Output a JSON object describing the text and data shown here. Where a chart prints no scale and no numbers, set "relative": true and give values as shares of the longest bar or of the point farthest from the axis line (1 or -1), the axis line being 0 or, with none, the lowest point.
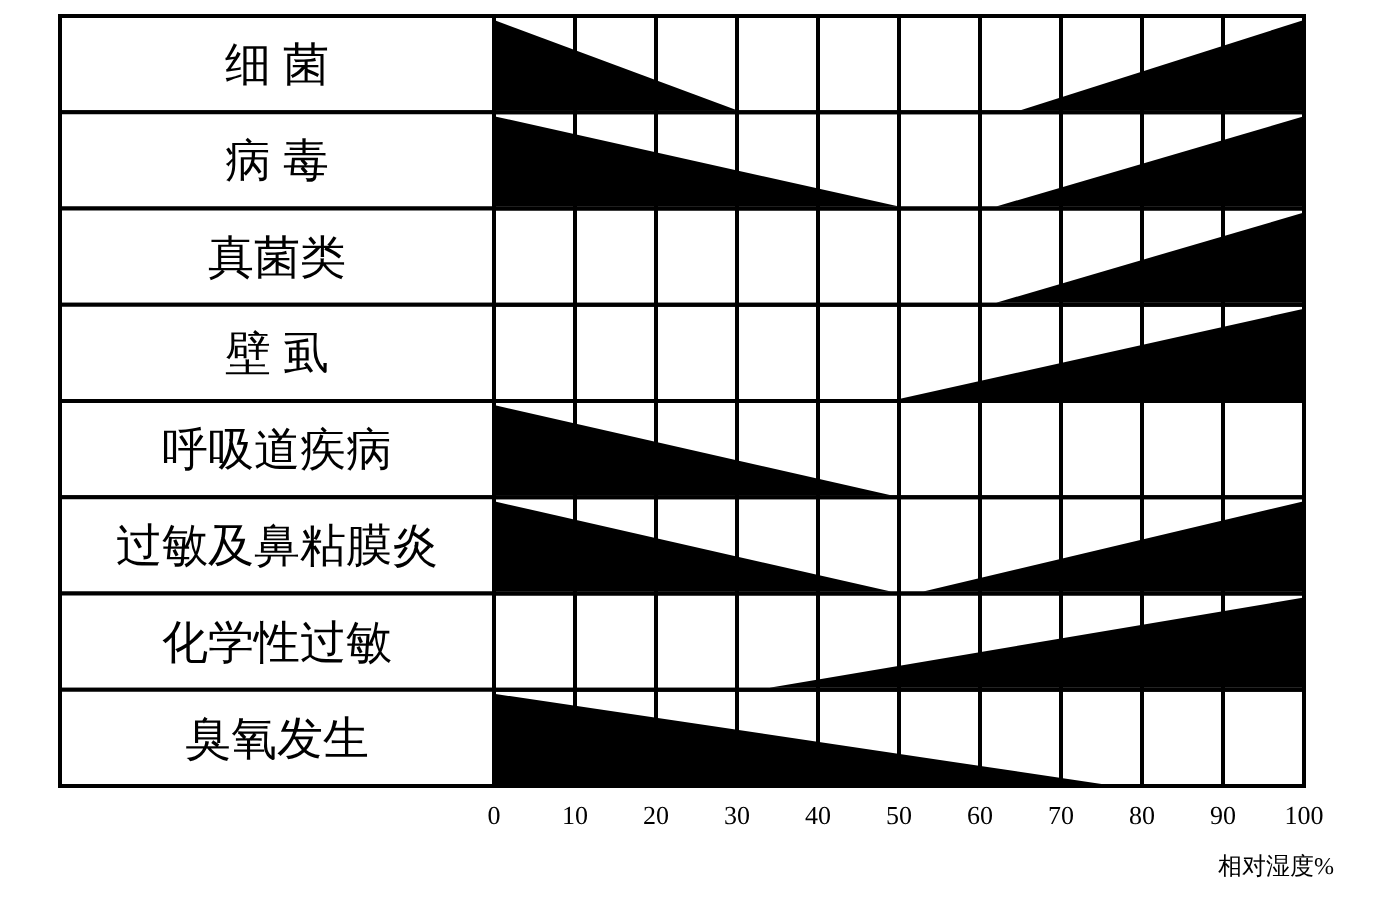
{
  "chart_data": [
    {
      "type": "area",
      "ylabel": "细 菌",
      "relative": true,
      "xlim": [
        0,
        100
      ],
      "xticks": [
        0,
        10,
        20,
        30,
        40,
        50,
        60,
        70,
        80,
        90,
        100
      ],
      "grid": "x",
      "tick_labels": false,
      "series": [
        {
          "color": "#000000",
          "x": [
            0,
            30
          ],
          "values": [
            1,
            0
          ]
        },
        {
          "color": "#000000",
          "x": [
            65,
            100
          ],
          "values": [
            0,
            1
          ]
        }
      ]
    },
    {
      "type": "area",
      "ylabel": "病 毒",
      "relative": true,
      "xlim": [
        0,
        100
      ],
      "xticks": [
        0,
        10,
        20,
        30,
        40,
        50,
        60,
        70,
        80,
        90,
        100
      ],
      "grid": "x",
      "tick_labels": false,
      "series": [
        {
          "color": "#000000",
          "x": [
            0,
            50
          ],
          "values": [
            1,
            0
          ]
        },
        {
          "color": "#000000",
          "x": [
            62,
            100
          ],
          "values": [
            0,
            1
          ]
        }
      ]
    },
    {
      "type": "area",
      "ylabel": "真菌类",
      "relative": true,
      "xlim": [
        0,
        100
      ],
      "xticks": [
        0,
        10,
        20,
        30,
        40,
        50,
        60,
        70,
        80,
        90,
        100
      ],
      "grid": "x",
      "tick_labels": false,
      "series": [
        {
          "color": "#000000",
          "x": [
            62,
            100
          ],
          "values": [
            0,
            1
          ]
        }
      ]
    },
    {
      "type": "area",
      "ylabel": "壁 虱",
      "relative": true,
      "xlim": [
        0,
        100
      ],
      "xticks": [
        0,
        10,
        20,
        30,
        40,
        50,
        60,
        70,
        80,
        90,
        100
      ],
      "grid": "x",
      "tick_labels": false,
      "series": [
        {
          "color": "#000000",
          "x": [
            50,
            100
          ],
          "values": [
            0,
            1
          ]
        }
      ]
    },
    {
      "type": "area",
      "ylabel": "呼吸道疾病",
      "relative": true,
      "xlim": [
        0,
        100
      ],
      "xticks": [
        0,
        10,
        20,
        30,
        40,
        50,
        60,
        70,
        80,
        90,
        100
      ],
      "grid": "x",
      "tick_labels": false,
      "series": [
        {
          "color": "#000000",
          "x": [
            0,
            49
          ],
          "values": [
            1,
            0
          ]
        }
      ]
    },
    {
      "type": "area",
      "ylabel": "过敏及鼻粘膜炎",
      "relative": true,
      "xlim": [
        0,
        100
      ],
      "xticks": [
        0,
        10,
        20,
        30,
        40,
        50,
        60,
        70,
        80,
        90,
        100
      ],
      "grid": "x",
      "tick_labels": false,
      "series": [
        {
          "color": "#000000",
          "x": [
            0,
            49
          ],
          "values": [
            1,
            0
          ]
        },
        {
          "color": "#000000",
          "x": [
            53,
            100
          ],
          "values": [
            0,
            1
          ]
        }
      ]
    },
    {
      "type": "area",
      "ylabel": "化学性过敏",
      "relative": true,
      "xlim": [
        0,
        100
      ],
      "xticks": [
        0,
        10,
        20,
        30,
        40,
        50,
        60,
        70,
        80,
        90,
        100
      ],
      "grid": "x",
      "tick_labels": false,
      "series": [
        {
          "color": "#000000",
          "x": [
            34,
            100
          ],
          "values": [
            0,
            1
          ]
        }
      ]
    },
    {
      "type": "area",
      "ylabel": "臭氧发生",
      "xlabel": "相对湿度%",
      "relative": true,
      "xlim": [
        0,
        100
      ],
      "xticks": [
        0,
        10,
        20,
        30,
        40,
        50,
        60,
        70,
        80,
        90,
        100
      ],
      "grid": "x",
      "tick_labels": "x",
      "series": [
        {
          "color": "#000000",
          "x": [
            0,
            75
          ],
          "values": [
            1,
            0
          ]
        }
      ]
    }
  ]
}
